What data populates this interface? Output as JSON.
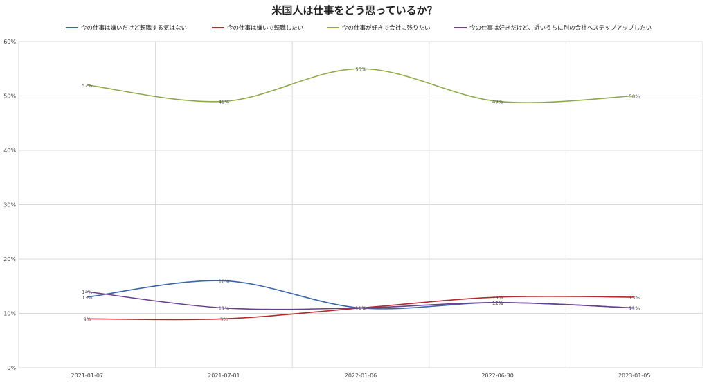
{
  "chart_data": {
    "type": "line",
    "title": "米国人は仕事をどう思っているか？",
    "categories": [
      "2021-01-07",
      "2021-07-01",
      "2022-01-06",
      "2022-06-30",
      "2023-01-05"
    ],
    "ylim": [
      0,
      0.6
    ],
    "yticks": [
      "0%",
      "10%",
      "20%",
      "30%",
      "40%",
      "50%",
      "60%"
    ],
    "grid": true,
    "legend": "top",
    "smooth": true,
    "series": [
      {
        "name": "今の仕事は嫌いだけど転職する気はない",
        "color": "#3a65a8",
        "values": [
          0.13,
          0.16,
          0.11,
          0.12,
          0.11
        ],
        "labels": [
          "13%",
          "16%",
          "11%",
          "12%",
          "11%"
        ]
      },
      {
        "name": "今の仕事は嫌いで転職したい",
        "color": "#b5282c",
        "values": [
          0.09,
          0.09,
          0.11,
          0.13,
          0.13
        ],
        "labels": [
          "9%",
          "9%",
          "11%",
          "13%",
          "13%"
        ]
      },
      {
        "name": "今の仕事が好きで会社に残りたい",
        "color": "#8ea94a",
        "values": [
          0.52,
          0.49,
          0.55,
          0.49,
          0.5
        ],
        "labels": [
          "52%",
          "49%",
          "55%",
          "49%",
          "50%"
        ]
      },
      {
        "name": "今の仕事は好きだけど、近いうちに別の会社へステップアップしたい",
        "color": "#6a3f8f",
        "values": [
          0.14,
          0.11,
          0.11,
          0.12,
          0.11
        ],
        "labels": [
          "14%",
          "11%",
          "11%",
          "12%",
          "11%"
        ]
      }
    ]
  }
}
